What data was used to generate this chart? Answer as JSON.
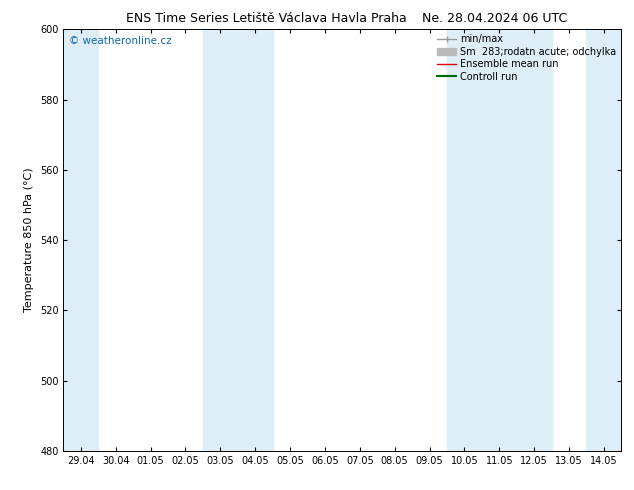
{
  "title_left": "ENS Time Series Letiště Václava Havla Praha",
  "title_right": "Ne. 28.04.2024 06 UTC",
  "ylabel": "Temperature 850 hPa (°C)",
  "ylim": [
    480,
    600
  ],
  "yticks": [
    480,
    500,
    520,
    540,
    560,
    580,
    600
  ],
  "xlabels": [
    "29.04",
    "30.04",
    "01.05",
    "02.05",
    "03.05",
    "04.05",
    "05.05",
    "06.05",
    "07.05",
    "08.05",
    "09.05",
    "10.05",
    "11.05",
    "12.05",
    "13.05",
    "14.05"
  ],
  "bg_color": "#ffffff",
  "band_color": "#ddeef8",
  "band_indices": [
    0,
    4,
    5,
    11,
    12,
    13,
    15
  ],
  "watermark": "© weatheronline.cz",
  "watermark_color": "#1166aa",
  "legend_entries": [
    {
      "label": "min/max",
      "color": "#999999",
      "lw": 1.0
    },
    {
      "label": "Sm  283;rodatn acute; odchylka",
      "color": "#bbbbbb",
      "lw": 5.0
    },
    {
      "label": "Ensemble mean run",
      "color": "#dd0000",
      "lw": 1.0
    },
    {
      "label": "Controll run",
      "color": "#006600",
      "lw": 1.5
    }
  ],
  "title_fontsize": 9,
  "tick_fontsize": 7,
  "axis_label_fontsize": 8,
  "legend_fontsize": 7
}
